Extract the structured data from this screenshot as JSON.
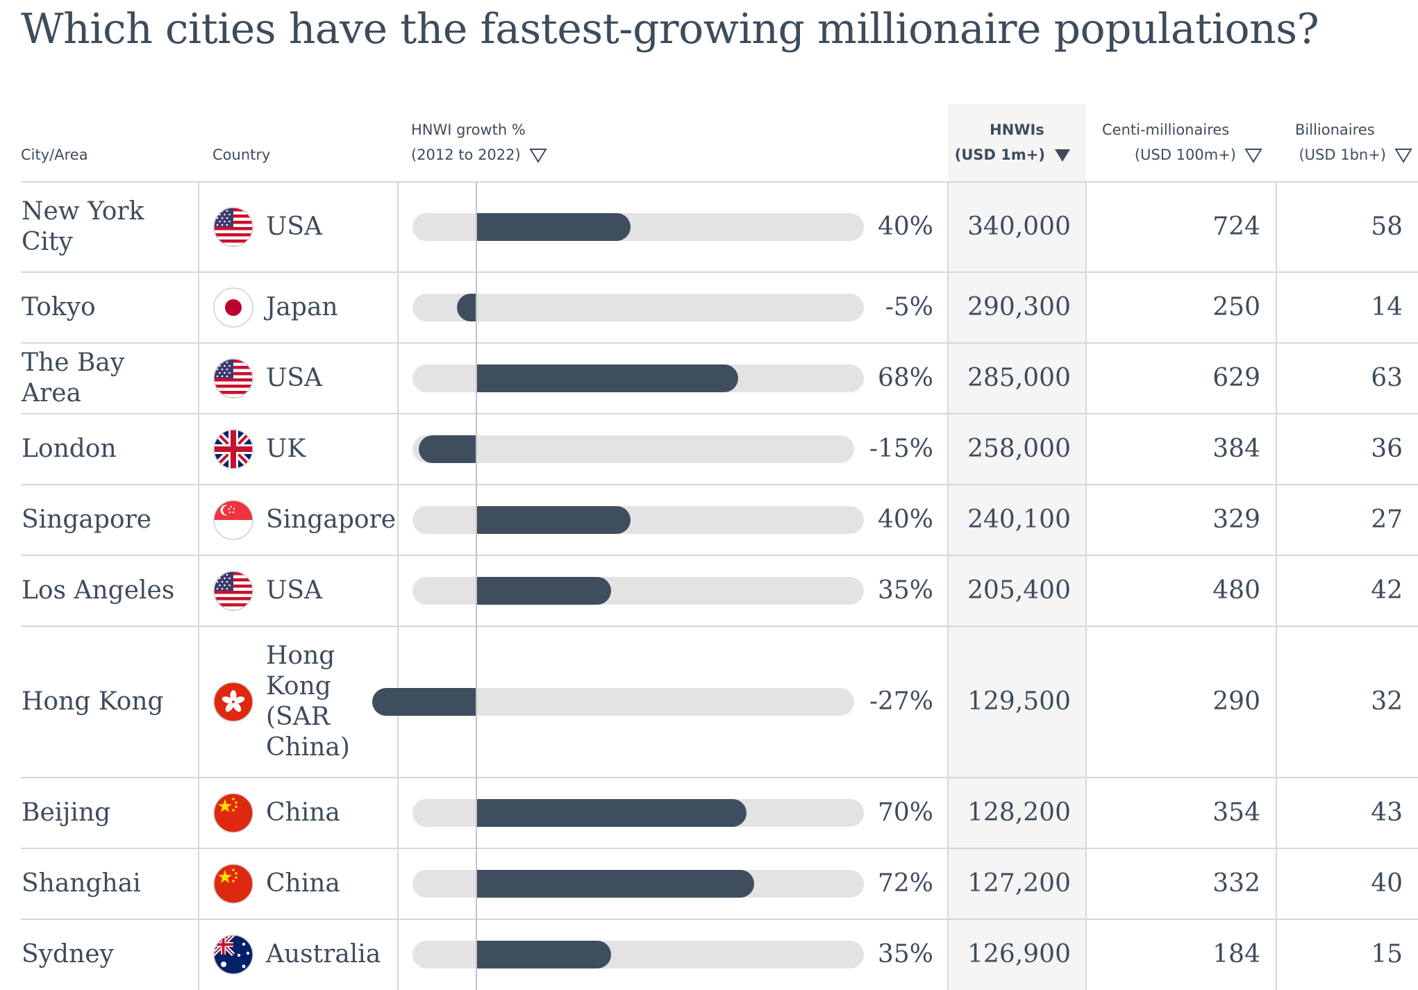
{
  "title": "Which cities have the fastest-growing millionaire populations?",
  "headers": {
    "city": "City/Area",
    "country": "Country",
    "growth_line1": "HNWI growth %",
    "growth_line2": "(2012 to 2022)",
    "hnwi_line1": "HNWIs",
    "hnwi_line2": "(USD 1m+)",
    "centi_line1": "Centi-millionaires",
    "centi_line2": "(USD 100m+)",
    "bill_line1": "Billionaires",
    "bill_line2": "(USD 1bn+)"
  },
  "colors": {
    "bar": "#3e4e5e",
    "track": "#e3e3e4",
    "text": "#3d4c5c",
    "highlight_column": "#f5f5f5"
  },
  "chart_data": {
    "type": "table",
    "sorted_by": "HNWIs (USD 1m+)",
    "sort_order": "descending",
    "columns": [
      "City/Area",
      "Country",
      "HNWI growth % (2012 to 2022)",
      "HNWIs (USD 1m+)",
      "Centi-millionaires (USD 100m+)",
      "Billionaires (USD 1bn+)"
    ],
    "rows": [
      {
        "city": "New York City",
        "country": "USA",
        "flag": "usa-flag-icon",
        "growth": 40,
        "growth_label": "40%",
        "hnwi": "340,000",
        "centi": "724",
        "bill": "58"
      },
      {
        "city": "Tokyo",
        "country": "Japan",
        "flag": "japan-flag-icon",
        "growth": -5,
        "growth_label": "-5%",
        "hnwi": "290,300",
        "centi": "250",
        "bill": "14"
      },
      {
        "city": "The Bay Area",
        "country": "USA",
        "flag": "usa-flag-icon",
        "growth": 68,
        "growth_label": "68%",
        "hnwi": "285,000",
        "centi": "629",
        "bill": "63"
      },
      {
        "city": "London",
        "country": "UK",
        "flag": "uk-flag-icon",
        "growth": -15,
        "growth_label": "-15%",
        "hnwi": "258,000",
        "centi": "384",
        "bill": "36"
      },
      {
        "city": "Singapore",
        "country": "Singapore",
        "flag": "singapore-flag-icon",
        "growth": 40,
        "growth_label": "40%",
        "hnwi": "240,100",
        "centi": "329",
        "bill": "27"
      },
      {
        "city": "Los Angeles",
        "country": "USA",
        "flag": "usa-flag-icon",
        "growth": 35,
        "growth_label": "35%",
        "hnwi": "205,400",
        "centi": "480",
        "bill": "42"
      },
      {
        "city": "Hong Kong",
        "country": "Hong Kong (SAR China)",
        "flag": "hong-kong-flag-icon",
        "growth": -27,
        "growth_label": "-27%",
        "hnwi": "129,500",
        "centi": "290",
        "bill": "32"
      },
      {
        "city": "Beijing",
        "country": "China",
        "flag": "china-flag-icon",
        "growth": 70,
        "growth_label": "70%",
        "hnwi": "128,200",
        "centi": "354",
        "bill": "43"
      },
      {
        "city": "Shanghai",
        "country": "China",
        "flag": "china-flag-icon",
        "growth": 72,
        "growth_label": "72%",
        "hnwi": "127,200",
        "centi": "332",
        "bill": "40"
      },
      {
        "city": "Sydney",
        "country": "Australia",
        "flag": "australia-flag-icon",
        "growth": 35,
        "growth_label": "35%",
        "hnwi": "126,900",
        "centi": "184",
        "bill": "15"
      }
    ]
  }
}
